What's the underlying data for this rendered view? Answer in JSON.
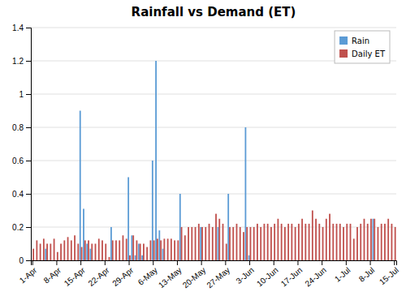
{
  "chart_data": {
    "type": "bar",
    "title": "Rainfall vs Demand (ET)",
    "categories": [
      "1-Apr",
      null,
      null,
      null,
      null,
      null,
      null,
      "8-Apr",
      null,
      null,
      null,
      null,
      null,
      null,
      "15-Apr",
      null,
      null,
      null,
      null,
      null,
      null,
      "22-Apr",
      null,
      null,
      null,
      null,
      null,
      null,
      "29-Apr",
      null,
      null,
      null,
      null,
      null,
      null,
      "6-May",
      null,
      null,
      null,
      null,
      null,
      null,
      "13-May",
      null,
      null,
      null,
      null,
      null,
      null,
      "20-May",
      null,
      null,
      null,
      null,
      null,
      null,
      "27-May",
      null,
      null,
      null,
      null,
      null,
      null,
      "3-Jun",
      null,
      null,
      null,
      null,
      null,
      null,
      "10-Jun",
      null,
      null,
      null,
      null,
      null,
      null,
      "17-Jun",
      null,
      null,
      null,
      null,
      null,
      null,
      "24-Jun",
      null,
      null,
      null,
      null,
      null,
      null,
      "1-Jul",
      null,
      null,
      null,
      null,
      null,
      null,
      "8-Jul",
      null,
      null,
      null,
      null,
      null,
      null,
      "15-Jul"
    ],
    "series": [
      {
        "name": "Rain",
        "color": "#5B9BD5",
        "values": [
          0.0,
          0.0,
          0.0,
          0.0,
          0.07,
          0.0,
          0.0,
          0.0,
          0.0,
          0.0,
          0.0,
          0.0,
          0.0,
          0.0,
          0.9,
          0.31,
          0.1,
          0.07,
          0.0,
          0.0,
          0.0,
          0.0,
          0.0,
          0.2,
          0.0,
          0.0,
          0.0,
          0.0,
          0.5,
          0.15,
          0.03,
          0.1,
          0.03,
          0.0,
          0.0,
          0.6,
          1.2,
          0.18,
          0.07,
          0.0,
          0.0,
          0.0,
          0.0,
          0.4,
          0.0,
          0.0,
          0.0,
          0.0,
          0.0,
          0.2,
          0.0,
          0.0,
          0.0,
          0.0,
          0.2,
          0.0,
          0.0,
          0.4,
          0.0,
          0.0,
          0.0,
          0.0,
          0.8,
          0.03,
          0.0,
          0.0,
          0.0,
          0.0,
          0.0,
          0.0,
          0.0,
          0.0,
          0.0,
          0.0,
          0.0,
          0.0,
          0.0,
          0.0,
          0.0,
          0.0,
          0.0,
          0.0,
          0.0,
          0.0,
          0.0,
          0.0,
          0.0,
          0.0,
          0.0,
          0.0,
          0.0,
          0.0,
          0.0,
          0.0,
          0.0,
          0.0,
          0.0,
          0.0,
          0.0,
          0.25,
          0.0,
          0.0,
          0.0,
          0.0,
          0.0,
          0.0
        ]
      },
      {
        "name": "Daily ET",
        "color": "#C0504D",
        "values": [
          0.07,
          0.12,
          0.1,
          0.13,
          0.1,
          0.1,
          0.13,
          0.05,
          0.1,
          0.12,
          0.14,
          0.12,
          0.15,
          0.1,
          0.08,
          0.12,
          0.12,
          0.1,
          0.1,
          0.13,
          0.12,
          0.1,
          0.02,
          0.12,
          0.12,
          0.12,
          0.15,
          0.13,
          0.03,
          0.15,
          0.12,
          0.1,
          0.1,
          0.08,
          0.12,
          0.12,
          0.13,
          0.12,
          0.13,
          0.13,
          0.13,
          0.12,
          0.12,
          0.2,
          0.15,
          0.2,
          0.2,
          0.2,
          0.22,
          0.2,
          0.2,
          0.22,
          0.2,
          0.28,
          0.25,
          0.22,
          0.1,
          0.2,
          0.2,
          0.22,
          0.2,
          0.17,
          0.2,
          0.2,
          0.2,
          0.22,
          0.2,
          0.22,
          0.22,
          0.2,
          0.22,
          0.25,
          0.22,
          0.2,
          0.22,
          0.22,
          0.2,
          0.22,
          0.25,
          0.22,
          0.22,
          0.3,
          0.25,
          0.22,
          0.2,
          0.25,
          0.28,
          0.22,
          0.22,
          0.22,
          0.2,
          0.22,
          0.22,
          0.13,
          0.2,
          0.22,
          0.25,
          0.22,
          0.25,
          0.25,
          0.2,
          0.22,
          0.22,
          0.25,
          0.22,
          0.2
        ]
      }
    ],
    "ylim": [
      0,
      1.4
    ],
    "yticks": [
      0,
      0.2,
      0.4,
      0.6,
      0.8,
      1,
      1.2,
      1.4
    ],
    "grid": true,
    "legend": "upper right"
  }
}
